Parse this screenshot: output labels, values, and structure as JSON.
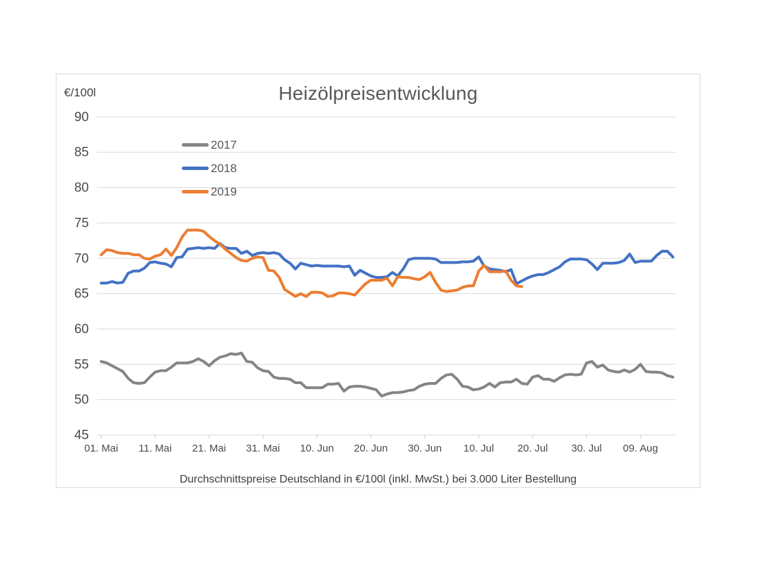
{
  "page": {
    "background_color": "#ffffff"
  },
  "chart": {
    "title": "Heizölpreisentwicklung",
    "unit_label": "€/100l",
    "caption": "Durchschnittspreise Deutschland in €/100l (inkl. MwSt.) bei 3.000 Liter Bestellung",
    "legend": [
      {
        "label": "2017",
        "color": "#858585"
      },
      {
        "label": "2018",
        "color": "#4472c4"
      },
      {
        "label": "2019",
        "color": "#ed7d31"
      }
    ],
    "grid_color": "#d9d9d9",
    "tick_color": "#c6c6c6",
    "axis_label_color": "#4a4a4a"
  },
  "chart_data": {
    "type": "line",
    "title": "Heizölpreisentwicklung",
    "ylabel": "€/100l",
    "ylim": [
      45,
      90
    ],
    "yticks": [
      90,
      85,
      80,
      75,
      70,
      65,
      60,
      55,
      50,
      45
    ],
    "grid": true,
    "legend_position": "upper-left-inside",
    "x_unit": "days, daily quotes starting 01. Mai (index 0)",
    "xticks": [
      {
        "label": "01. Mai",
        "day": 0
      },
      {
        "label": "11. Mai",
        "day": 10
      },
      {
        "label": "21. Mai",
        "day": 20
      },
      {
        "label": "31. Mai",
        "day": 30
      },
      {
        "label": "10. Jun",
        "day": 40
      },
      {
        "label": "20. Jun",
        "day": 50
      },
      {
        "label": "30. Jun",
        "day": 60
      },
      {
        "label": "10. Jul",
        "day": 70
      },
      {
        "label": "20. Jul",
        "day": 80
      },
      {
        "label": "30. Jul",
        "day": 90
      },
      {
        "label": "09. Aug",
        "day": 100
      }
    ],
    "series": [
      {
        "name": "2017",
        "color": "#858585",
        "values": [
          55.4,
          55.2,
          54.8,
          54.4,
          54.0,
          53.0,
          52.4,
          52.3,
          52.4,
          53.2,
          53.9,
          54.1,
          54.1,
          54.6,
          55.2,
          55.2,
          55.2,
          55.4,
          55.8,
          55.4,
          54.8,
          55.5,
          56.0,
          56.2,
          56.5,
          56.4,
          56.6,
          55.4,
          55.3,
          54.5,
          54.1,
          54.0,
          53.2,
          53.0,
          53.0,
          52.9,
          52.4,
          52.4,
          51.7,
          51.7,
          51.7,
          51.7,
          52.2,
          52.2,
          52.3,
          51.2,
          51.8,
          51.9,
          51.9,
          51.8,
          51.6,
          51.4,
          50.5,
          50.8,
          51.0,
          51.0,
          51.1,
          51.3,
          51.4,
          51.9,
          52.2,
          52.3,
          52.3,
          53.0,
          53.5,
          53.6,
          52.9,
          51.9,
          51.8,
          51.4,
          51.5,
          51.8,
          52.3,
          51.8,
          52.4,
          52.5,
          52.5,
          52.9,
          52.3,
          52.2,
          53.2,
          53.4,
          52.9,
          52.9,
          52.6,
          53.1,
          53.5,
          53.6,
          53.5,
          53.6,
          55.2,
          55.4,
          54.6,
          54.9,
          54.2,
          54.0,
          53.9,
          54.2,
          53.9,
          54.3,
          55.0,
          54.0,
          53.9,
          53.9,
          53.8,
          53.4,
          53.2
        ]
      },
      {
        "name": "2018",
        "color": "#4472c4",
        "values": [
          66.5,
          66.5,
          66.7,
          66.5,
          66.6,
          67.9,
          68.2,
          68.2,
          68.6,
          69.4,
          69.5,
          69.3,
          69.2,
          68.8,
          70.1,
          70.2,
          71.3,
          71.4,
          71.5,
          71.4,
          71.5,
          71.4,
          72.1,
          71.5,
          71.4,
          71.4,
          70.7,
          71.0,
          70.4,
          70.7,
          70.8,
          70.7,
          70.8,
          70.6,
          69.8,
          69.3,
          68.5,
          69.3,
          69.1,
          68.9,
          69.0,
          68.9,
          68.9,
          68.9,
          68.9,
          68.8,
          68.9,
          67.6,
          68.3,
          67.9,
          67.5,
          67.3,
          67.3,
          67.4,
          68.0,
          67.5,
          68.5,
          69.8,
          70.0,
          70.0,
          70.0,
          70.0,
          69.9,
          69.4,
          69.4,
          69.4,
          69.4,
          69.5,
          69.5,
          69.6,
          70.2,
          68.9,
          68.5,
          68.4,
          68.3,
          68.1,
          68.4,
          66.4,
          66.8,
          67.2,
          67.5,
          67.7,
          67.7,
          68.0,
          68.4,
          68.8,
          69.5,
          69.9,
          69.9,
          69.9,
          69.8,
          69.2,
          68.4,
          69.3,
          69.3,
          69.3,
          69.4,
          69.7,
          70.6,
          69.4,
          69.6,
          69.6,
          69.6,
          70.4,
          71.0,
          71.0,
          70.2
        ]
      },
      {
        "name": "2019",
        "color": "#ed7d31",
        "values": [
          70.5,
          71.2,
          71.1,
          70.8,
          70.7,
          70.7,
          70.5,
          70.5,
          70.0,
          69.9,
          70.3,
          70.5,
          71.3,
          70.4,
          71.5,
          73.0,
          74.0,
          74.0,
          74.0,
          73.8,
          73.1,
          72.5,
          72.0,
          71.3,
          70.7,
          70.1,
          69.7,
          69.6,
          70.0,
          70.2,
          70.1,
          68.3,
          68.2,
          67.3,
          65.6,
          65.1,
          64.6,
          65.0,
          64.6,
          65.2,
          65.2,
          65.1,
          64.6,
          64.7,
          65.1,
          65.1,
          65.0,
          64.8,
          65.6,
          66.4,
          66.9,
          66.9,
          66.9,
          67.2,
          66.1,
          67.4,
          67.3,
          67.3,
          67.1,
          67.0,
          67.4,
          68.0,
          66.6,
          65.5,
          65.3,
          65.4,
          65.5,
          65.9,
          66.1,
          66.1,
          68.2,
          69.0,
          68.1,
          68.1,
          68.1,
          68.2,
          66.9,
          66.1,
          66.0
        ]
      }
    ]
  }
}
